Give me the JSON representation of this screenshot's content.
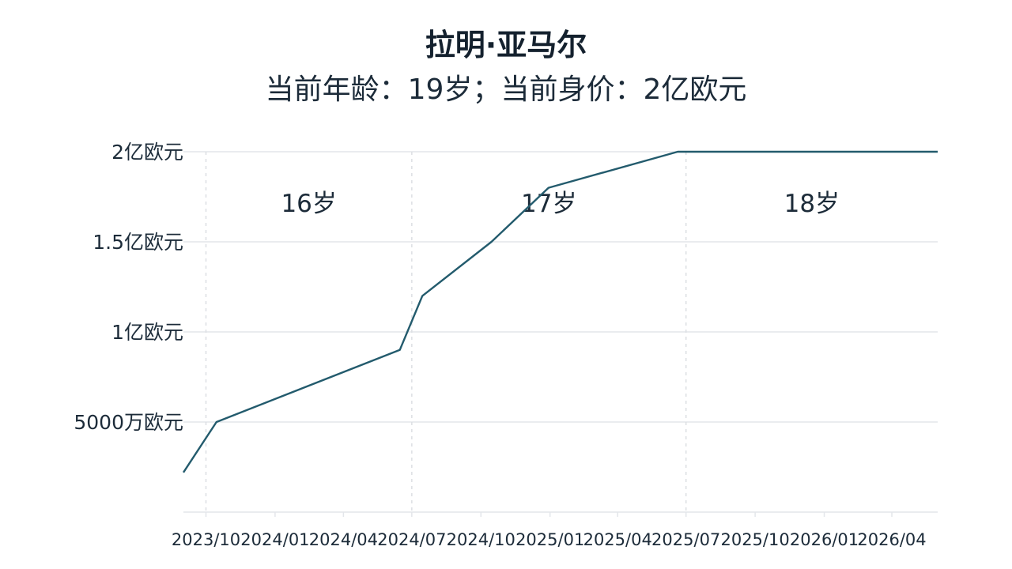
{
  "header": {
    "title": "拉明·亚马尔",
    "subtitle": "当前年龄：19岁；当前身价：2亿欧元"
  },
  "colors": {
    "line": "#235b6d",
    "grid": "#e3e6ea",
    "text": "#1c2b39"
  },
  "chart_data": {
    "type": "line",
    "title": "拉明·亚马尔",
    "subtitle": "当前年龄：19岁；当前身价：2亿欧元",
    "x_type": "date",
    "x_range": [
      "2023-09-01",
      "2026-06-01"
    ],
    "y_range": [
      0,
      200000000
    ],
    "y_ticks": [
      {
        "value": 50000000,
        "label": "5000万欧元"
      },
      {
        "value": 100000000,
        "label": "1亿欧元"
      },
      {
        "value": 150000000,
        "label": "1.5亿欧元"
      },
      {
        "value": 200000000,
        "label": "2亿欧元"
      }
    ],
    "x_ticks": [
      {
        "date": "2023-10-01",
        "label": "2023/10"
      },
      {
        "date": "2024-01-01",
        "label": "2024/01"
      },
      {
        "date": "2024-04-01",
        "label": "2024/04"
      },
      {
        "date": "2024-07-01",
        "label": "2024/07"
      },
      {
        "date": "2024-10-01",
        "label": "2024/10"
      },
      {
        "date": "2025-01-01",
        "label": "2025/01"
      },
      {
        "date": "2025-04-01",
        "label": "2025/04"
      },
      {
        "date": "2025-07-01",
        "label": "2025/07"
      },
      {
        "date": "2025-10-01",
        "label": "2025/10"
      },
      {
        "date": "2026-01-01",
        "label": "2026/01"
      },
      {
        "date": "2026-04-01",
        "label": "2026/04"
      }
    ],
    "grid": true,
    "age_periods": [
      {
        "label": "16岁",
        "start": "2023-10-01",
        "end": "2024-07-01"
      },
      {
        "label": "17岁",
        "start": "2024-07-01",
        "end": "2025-07-01"
      },
      {
        "label": "18岁",
        "start": "2025-07-01",
        "end": "2026-06-01"
      }
    ],
    "series": [
      {
        "points": [
          {
            "x": "2023-09-01",
            "y": 22000000
          },
          {
            "x": "2023-10-15",
            "y": 50000000
          },
          {
            "x": "2024-06-15",
            "y": 90000000
          },
          {
            "x": "2024-07-15",
            "y": 120000000
          },
          {
            "x": "2024-10-15",
            "y": 150000000
          },
          {
            "x": "2024-12-30",
            "y": 180000000
          },
          {
            "x": "2025-06-20",
            "y": 200000000
          },
          {
            "x": "2026-06-01",
            "y": 200000000
          }
        ]
      }
    ]
  }
}
